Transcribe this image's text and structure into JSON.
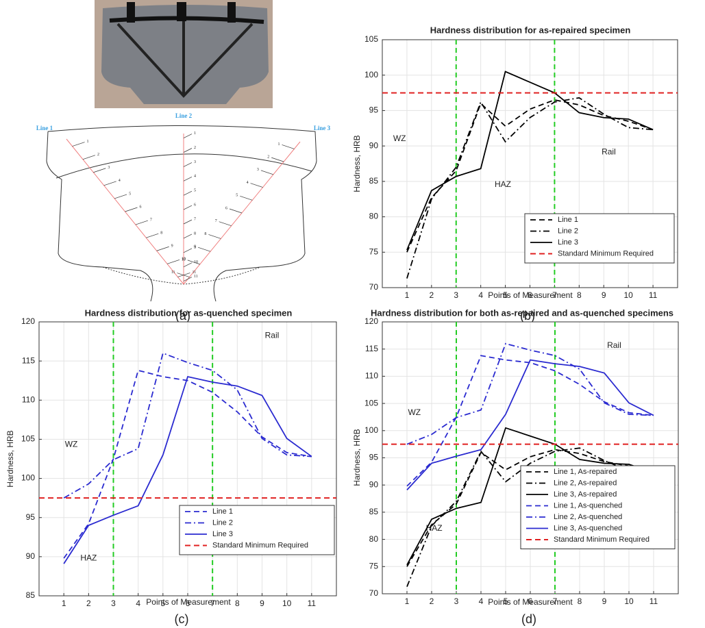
{
  "figure": {
    "panel_labels": [
      "(a)",
      "(b)",
      "(c)",
      "(d)"
    ],
    "diagram": {
      "line_labels": [
        "Line 1",
        "Line 2",
        "Line 3"
      ],
      "point_labels": [
        "1",
        "2",
        "3",
        "4",
        "5",
        "6",
        "7",
        "8",
        "9",
        "10",
        "11"
      ]
    }
  },
  "chart_data": [
    {
      "type": "line",
      "title": "Hardness distribution for as-repaired specimen",
      "x_label": "Points of Measurement",
      "y_label": "Hardness, HRB",
      "x": [
        1,
        2,
        3,
        4,
        5,
        6,
        7,
        8,
        9,
        10,
        11
      ],
      "xlim": [
        0,
        12
      ],
      "xticks": [
        1,
        2,
        3,
        4,
        5,
        6,
        7,
        8,
        9,
        10,
        11
      ],
      "ylim": [
        70,
        105
      ],
      "yticks": [
        70,
        75,
        80,
        85,
        90,
        95,
        100,
        105
      ],
      "grid": true,
      "legend": "lower right",
      "vlines": [
        3,
        7
      ],
      "vline_color": "#22cc22",
      "annotations": [
        "WZ",
        "HAZ",
        "Rail"
      ],
      "series": [
        {
          "name": "Line 1",
          "color": "#000000",
          "style": "dashed",
          "values": [
            75,
            82.7,
            86.5,
            96,
            92.8,
            95.2,
            96.5,
            95.8,
            94.3,
            93.5,
            92.3
          ]
        },
        {
          "name": "Line 2",
          "color": "#000000",
          "style": "dashdot",
          "values": [
            71.3,
            82.5,
            87,
            96.2,
            90.6,
            94,
            96.2,
            96.8,
            94.5,
            92.6,
            92.3
          ]
        },
        {
          "name": "Line 3",
          "color": "#000000",
          "style": "solid",
          "values": [
            75.3,
            83.7,
            85.7,
            86.8,
            100.5,
            99,
            97.5,
            94.7,
            94,
            93.8,
            92.3
          ]
        },
        {
          "name": "Standard Minimum Required",
          "color": "#e02020",
          "style": "dashed",
          "hline": 97.5
        }
      ]
    },
    {
      "type": "line",
      "title": "Hardness distribution for as-quenched specimen",
      "x_label": "Points of Measurement",
      "y_label": "Hardness, HRB",
      "x": [
        1,
        2,
        3,
        4,
        5,
        6,
        7,
        8,
        9,
        10,
        11
      ],
      "xlim": [
        0,
        12
      ],
      "xticks": [
        1,
        2,
        3,
        4,
        5,
        6,
        7,
        8,
        9,
        10,
        11
      ],
      "ylim": [
        85,
        120
      ],
      "yticks": [
        85,
        90,
        95,
        100,
        105,
        110,
        115,
        120
      ],
      "grid": true,
      "legend": "lower right",
      "vlines": [
        3,
        7
      ],
      "vline_color": "#22cc22",
      "annotations": [
        "WZ",
        "HAZ",
        "Rail"
      ],
      "series": [
        {
          "name": "Line 1",
          "color": "#2a2ad0",
          "style": "dashed",
          "values": [
            89.8,
            94.2,
            102.5,
            113.8,
            113,
            112.5,
            111,
            108.5,
            105.3,
            103.3,
            102.8
          ]
        },
        {
          "name": "Line 2",
          "color": "#2a2ad0",
          "style": "dashdot",
          "values": [
            97.5,
            99.3,
            102.4,
            103.8,
            116,
            114.8,
            113.8,
            111.3,
            105.1,
            103,
            102.8
          ]
        },
        {
          "name": "Line 3",
          "color": "#2a2ad0",
          "style": "solid",
          "values": [
            89.1,
            94,
            95.3,
            96.5,
            103,
            113,
            112.3,
            111.8,
            110.6,
            105.1,
            102.8
          ]
        },
        {
          "name": "Standard Minimum Required",
          "color": "#e02020",
          "style": "dashed",
          "hline": 97.5
        }
      ]
    },
    {
      "type": "line",
      "title": "Hardness distribution for both as-repaired and as-quenched specimens",
      "x_label": "Points of Measurement",
      "y_label": "Hardness, HRB",
      "x": [
        1,
        2,
        3,
        4,
        5,
        6,
        7,
        8,
        9,
        10,
        11
      ],
      "xlim": [
        0,
        12
      ],
      "xticks": [
        1,
        2,
        3,
        4,
        5,
        6,
        7,
        8,
        9,
        10,
        11
      ],
      "ylim": [
        70,
        120
      ],
      "yticks": [
        70,
        75,
        80,
        85,
        90,
        95,
        100,
        105,
        110,
        115,
        120
      ],
      "grid": true,
      "legend": "lower right",
      "vlines": [
        3,
        7
      ],
      "vline_color": "#22cc22",
      "annotations": [
        "WZ",
        "HAZ",
        "Rail"
      ],
      "series": [
        {
          "name": "Line 1, As-repaired",
          "color": "#000000",
          "style": "dashed",
          "values": [
            75,
            82.7,
            86.5,
            96,
            92.8,
            95.2,
            96.5,
            95.8,
            94.3,
            93.5,
            92.3
          ]
        },
        {
          "name": "Line 2, As-repaired",
          "color": "#000000",
          "style": "dashdot",
          "values": [
            71.3,
            82.5,
            87,
            96.2,
            90.6,
            94,
            96.2,
            96.8,
            94.5,
            92.6,
            92.3
          ]
        },
        {
          "name": "Line 3, As-repaired",
          "color": "#000000",
          "style": "solid",
          "values": [
            75.3,
            83.7,
            85.7,
            86.8,
            100.5,
            99,
            97.5,
            94.7,
            94,
            93.8,
            92.3
          ]
        },
        {
          "name": "Line 1, As-quenched",
          "color": "#2a2ad0",
          "style": "dashed",
          "values": [
            89.8,
            94.2,
            102.5,
            113.8,
            113,
            112.5,
            111,
            108.5,
            105.3,
            103.3,
            102.8
          ]
        },
        {
          "name": "Line 2, As-quenched",
          "color": "#2a2ad0",
          "style": "dashdot",
          "values": [
            97.5,
            99.3,
            102.4,
            103.8,
            116,
            114.8,
            113.8,
            111.3,
            105.1,
            103,
            102.8
          ]
        },
        {
          "name": "Line 3, As-quenched",
          "color": "#2a2ad0",
          "style": "solid",
          "values": [
            89.1,
            94,
            95.3,
            96.5,
            103,
            113,
            112.3,
            111.8,
            110.6,
            105.1,
            102.8
          ]
        },
        {
          "name": "Standard Minimum Required",
          "color": "#e02020",
          "style": "dashed",
          "hline": 97.5
        }
      ]
    }
  ]
}
